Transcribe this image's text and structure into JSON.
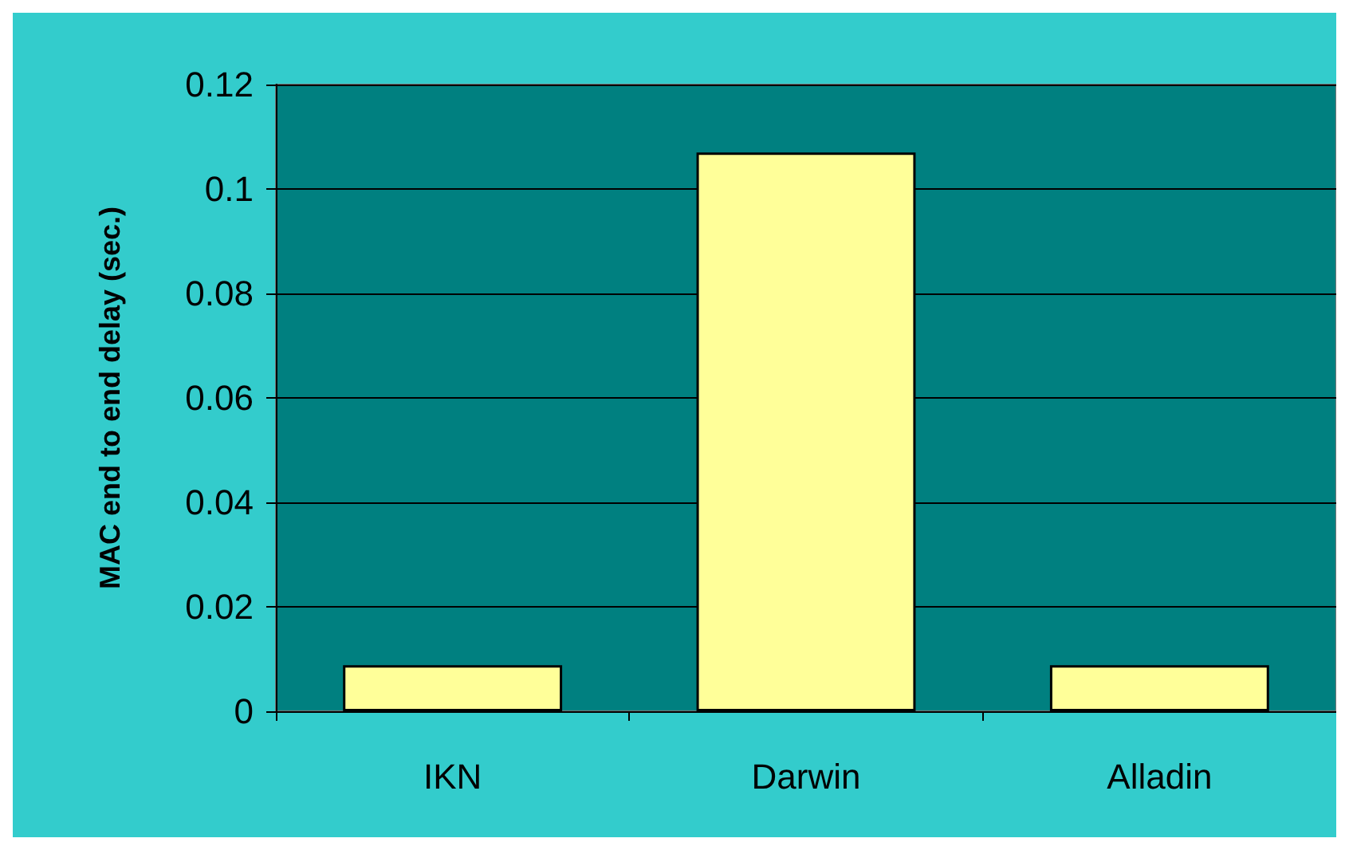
{
  "chart_data": {
    "type": "bar",
    "ylabel": "MAC end to end delay (sec.)",
    "categories": [
      "IKN",
      "Darwin",
      "Alladin"
    ],
    "values": [
      0.0088,
      0.107,
      0.0088
    ],
    "color": "#ffff99",
    "ylim": [
      0,
      0.12
    ],
    "yticks": [
      0,
      0.02,
      0.04,
      0.06,
      0.08,
      0.1,
      0.12
    ],
    "grid": "y"
  }
}
